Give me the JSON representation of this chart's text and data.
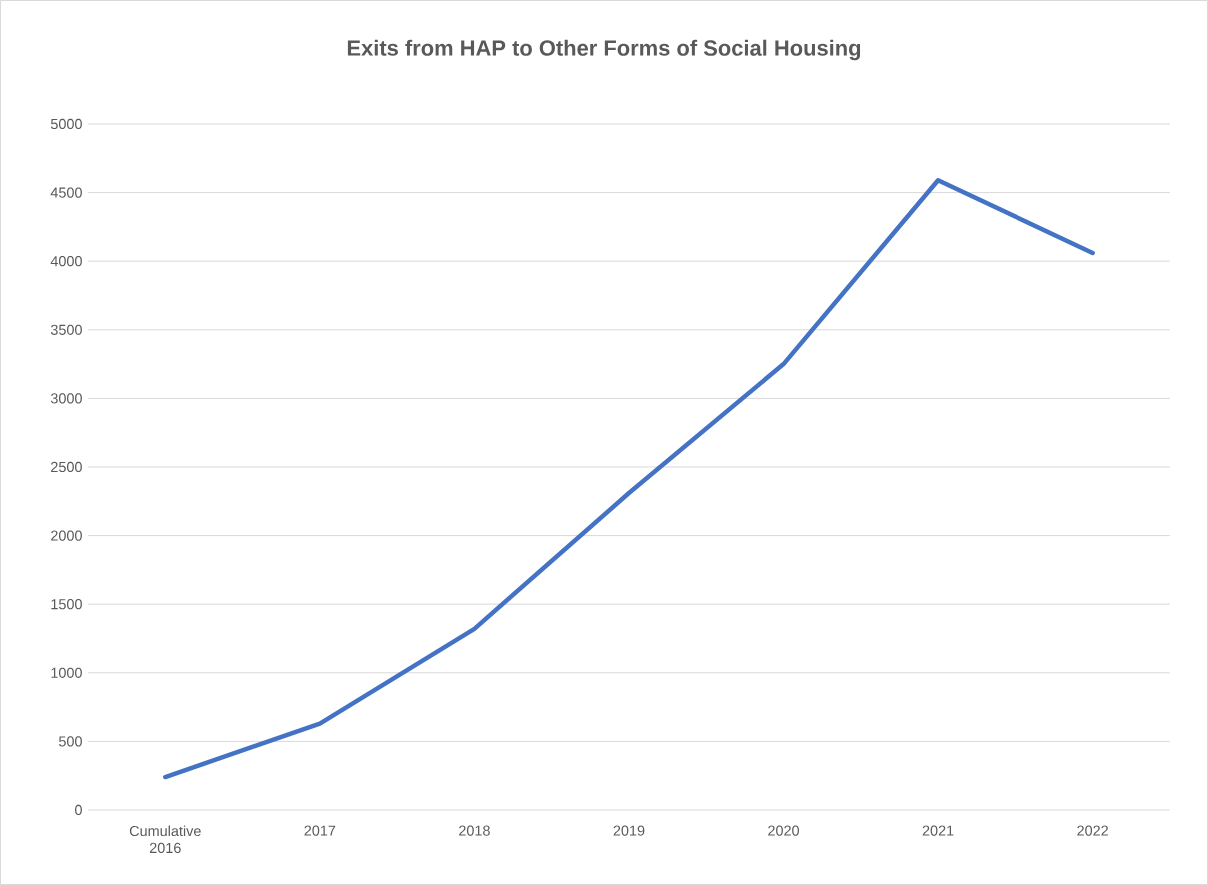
{
  "chart_data": {
    "type": "line",
    "title": "Exits from HAP to Other Forms of Social Housing",
    "categories": [
      "Cumulative 2016",
      "2017",
      "2018",
      "2019",
      "2020",
      "2021",
      "2022"
    ],
    "values": [
      240,
      630,
      1320,
      2310,
      3250,
      4590,
      4060
    ],
    "color": "#4472c4",
    "ylim": [
      0,
      5000
    ],
    "yticks": [
      0,
      500,
      1000,
      1500,
      2000,
      2500,
      3000,
      3500,
      4000,
      4500,
      5000
    ],
    "grid": "y"
  }
}
